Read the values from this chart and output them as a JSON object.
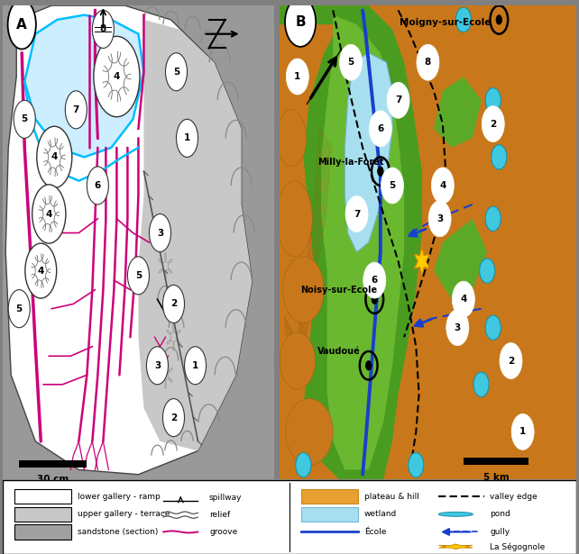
{
  "fig_width": 6.42,
  "fig_height": 6.15,
  "bg_color": "#808080",
  "groove_color": "#cc007a",
  "cyan_line_color": "#00bfff",
  "scale_bar_A": "30 cm",
  "scale_bar_B": "5 km",
  "place_moigny": "Moigny-sur-Ecole",
  "place_milly": "Milly-la-Forêt",
  "place_noisy": "Noisy-sur-Ecole",
  "place_vaudoue": "Vaudoué"
}
